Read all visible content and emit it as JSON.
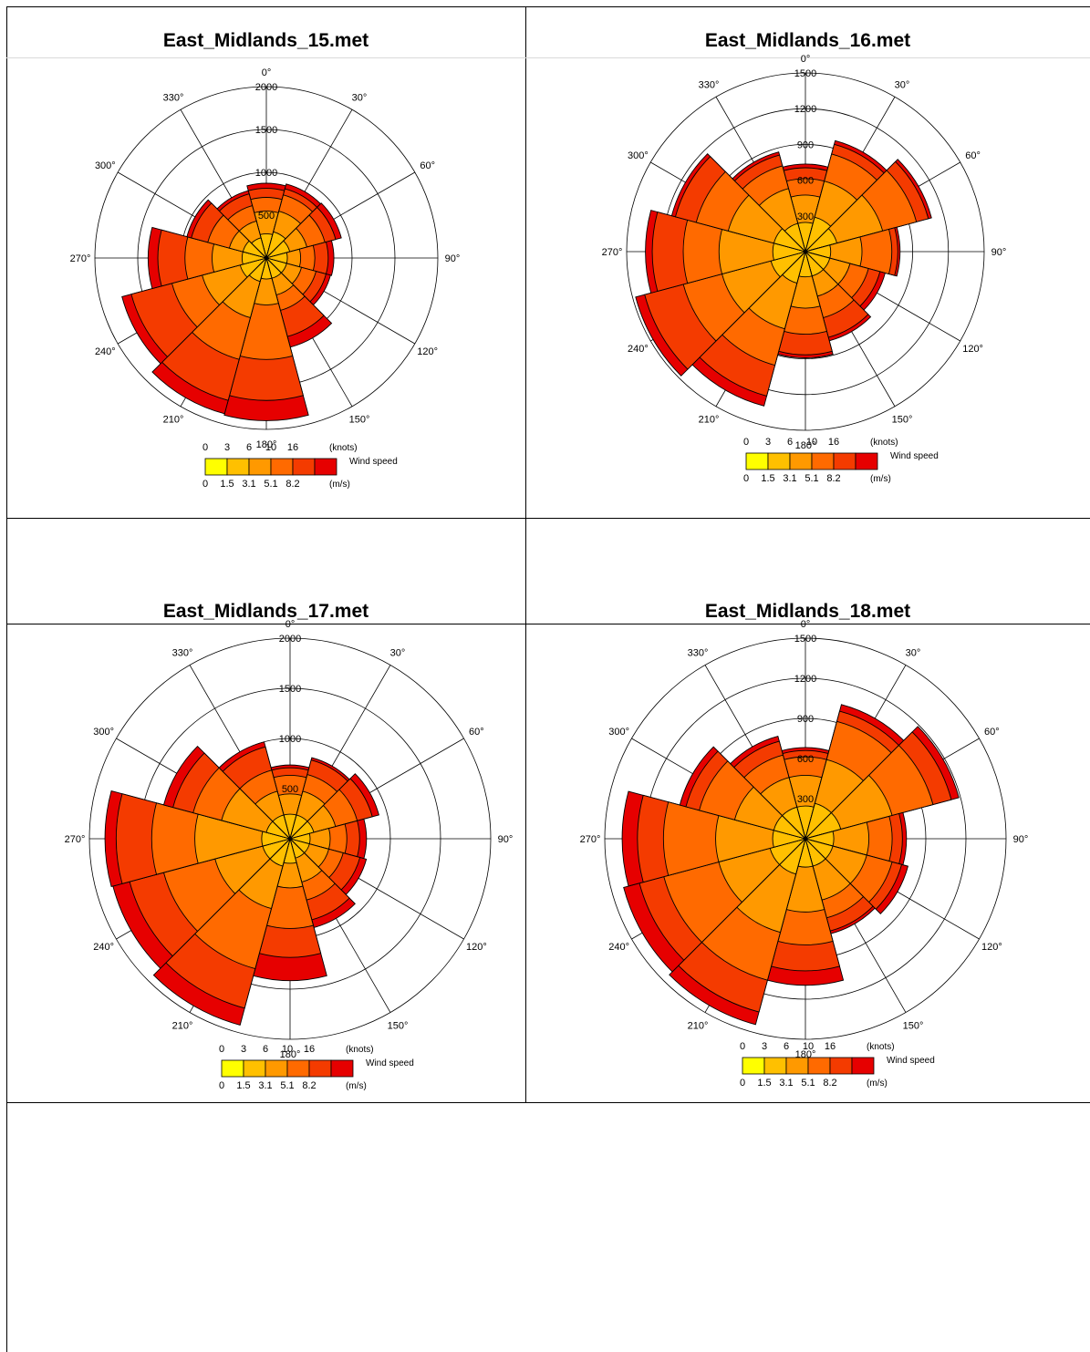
{
  "colors": {
    "bins": [
      "#ffff00",
      "#ffc000",
      "#ff9900",
      "#ff6a00",
      "#f43b00",
      "#e60000"
    ],
    "grid": "#000000",
    "border": "#000000"
  },
  "legend": {
    "knots_ticks": [
      "0",
      "3",
      "6",
      "10",
      "16"
    ],
    "knots_unit": "(knots)",
    "ms_ticks": [
      "0",
      "1.5",
      "3.1",
      "5.1",
      "8.2"
    ],
    "ms_unit": "(m/s)",
    "label": "Wind speed"
  },
  "chart_data": [
    {
      "type": "wind-rose",
      "title": "East_Midlands_15.met",
      "rmax": 2000,
      "ring_labels": [
        "500",
        "1000",
        "1500",
        "2000"
      ],
      "direction_labels": [
        "0°",
        "30°",
        "60°",
        "90°",
        "120°",
        "150°",
        "180°",
        "210°",
        "240°",
        "270°",
        "300°",
        "330°"
      ],
      "directions": [
        0,
        30,
        60,
        90,
        120,
        150,
        180,
        210,
        240,
        270,
        300,
        330
      ],
      "cumulative_counts": [
        [
          40,
          150,
          250,
          330,
          380
        ],
        [
          50,
          160,
          290,
          350,
          400
        ],
        [
          40,
          120,
          250,
          350,
          410
        ],
        [
          30,
          80,
          160,
          260,
          310
        ],
        [
          30,
          90,
          180,
          260,
          300
        ],
        [
          30,
          100,
          200,
          450,
          580
        ],
        [
          30,
          150,
          700,
          1380,
          1800
        ],
        [
          40,
          260,
          750,
          1480,
          1770
        ],
        [
          50,
          300,
          650,
          1330,
          1520
        ],
        [
          40,
          200,
          450,
          800,
          950
        ],
        [
          40,
          100,
          250,
          410,
          460
        ],
        [
          30,
          100,
          200,
          300,
          330
        ]
      ]
    },
    {
      "type": "wind-rose",
      "title": "East_Midlands_16.met",
      "rmax": 1500,
      "ring_labels": [
        "300",
        "600",
        "900",
        "1200",
        "1500"
      ],
      "direction_labels": [
        "0°",
        "30°",
        "60°",
        "90°",
        "120°",
        "150°",
        "180°",
        "210°",
        "240°",
        "270°",
        "300°",
        "330°"
      ],
      "directions": [
        0,
        30,
        60,
        90,
        120,
        150,
        180,
        210,
        240,
        270,
        300,
        330
      ],
      "cumulative_counts": [
        [
          40,
          150,
          250,
          330,
          360
        ],
        [
          60,
          250,
          480,
          580,
          620
        ],
        [
          50,
          300,
          620,
          760,
          800
        ],
        [
          30,
          150,
          350,
          400,
          420
        ],
        [
          30,
          100,
          200,
          280,
          320
        ],
        [
          30,
          100,
          220,
          370,
          400
        ],
        [
          30,
          150,
          320,
          500,
          530
        ],
        [
          50,
          300,
          650,
          1050,
          1200
        ],
        [
          60,
          350,
          750,
          1300,
          1450
        ],
        [
          50,
          350,
          700,
          1100,
          1200
        ],
        [
          50,
          300,
          600,
          850,
          900
        ],
        [
          40,
          200,
          370,
          470,
          500
        ]
      ]
    },
    {
      "type": "wind-rose",
      "title": "East_Midlands_17.met",
      "rmax": 2000,
      "ring_labels": [
        "500",
        "1000",
        "1500",
        "2000"
      ],
      "direction_labels": [
        "0°",
        "30°",
        "60°",
        "90°",
        "120°",
        "150°",
        "180°",
        "210°",
        "240°",
        "270°",
        "300°",
        "330°"
      ],
      "directions": [
        0,
        30,
        60,
        90,
        120,
        150,
        180,
        210,
        240,
        270,
        300,
        330
      ],
      "cumulative_counts": [
        [
          30,
          100,
          200,
          250,
          270
        ],
        [
          30,
          120,
          220,
          330,
          350
        ],
        [
          30,
          110,
          240,
          360,
          420
        ],
        [
          20,
          80,
          160,
          240,
          290
        ],
        [
          20,
          80,
          150,
          260,
          310
        ],
        [
          20,
          100,
          200,
          350,
          420
        ],
        [
          30,
          120,
          400,
          700,
          1000
        ],
        [
          40,
          260,
          900,
          1530,
          1850
        ],
        [
          40,
          300,
          850,
          1370,
          1670
        ],
        [
          40,
          450,
          950,
          1500,
          1700
        ],
        [
          30,
          250,
          500,
          730,
          850
        ],
        [
          30,
          120,
          250,
          450,
          500
        ]
      ]
    },
    {
      "type": "wind-rose",
      "title": "East_Midlands_18.met",
      "rmax": 1500,
      "ring_labels": [
        "300",
        "600",
        "900",
        "1200",
        "1500"
      ],
      "direction_labels": [
        "0°",
        "30°",
        "60°",
        "90°",
        "120°",
        "150°",
        "180°",
        "210°",
        "240°",
        "270°",
        "300°",
        "330°"
      ],
      "directions": [
        0,
        30,
        60,
        90,
        120,
        150,
        180,
        210,
        240,
        270,
        300,
        330
      ],
      "cumulative_counts": [
        [
          40,
          150,
          250,
          290,
          310
        ],
        [
          50,
          250,
          550,
          650,
          720
        ],
        [
          50,
          300,
          650,
          850,
          940
        ],
        [
          30,
          150,
          280,
          350,
          380
        ],
        [
          30,
          150,
          300,
          370,
          420
        ],
        [
          30,
          150,
          250,
          340,
          360
        ],
        [
          30,
          200,
          420,
          650,
          800
        ],
        [
          50,
          350,
          800,
          1200,
          1380
        ],
        [
          50,
          300,
          800,
          1100,
          1320
        ],
        [
          40,
          300,
          750,
          1050,
          1250
        ],
        [
          40,
          200,
          450,
          570,
          630
        ],
        [
          40,
          150,
          280,
          380,
          420
        ]
      ]
    }
  ]
}
